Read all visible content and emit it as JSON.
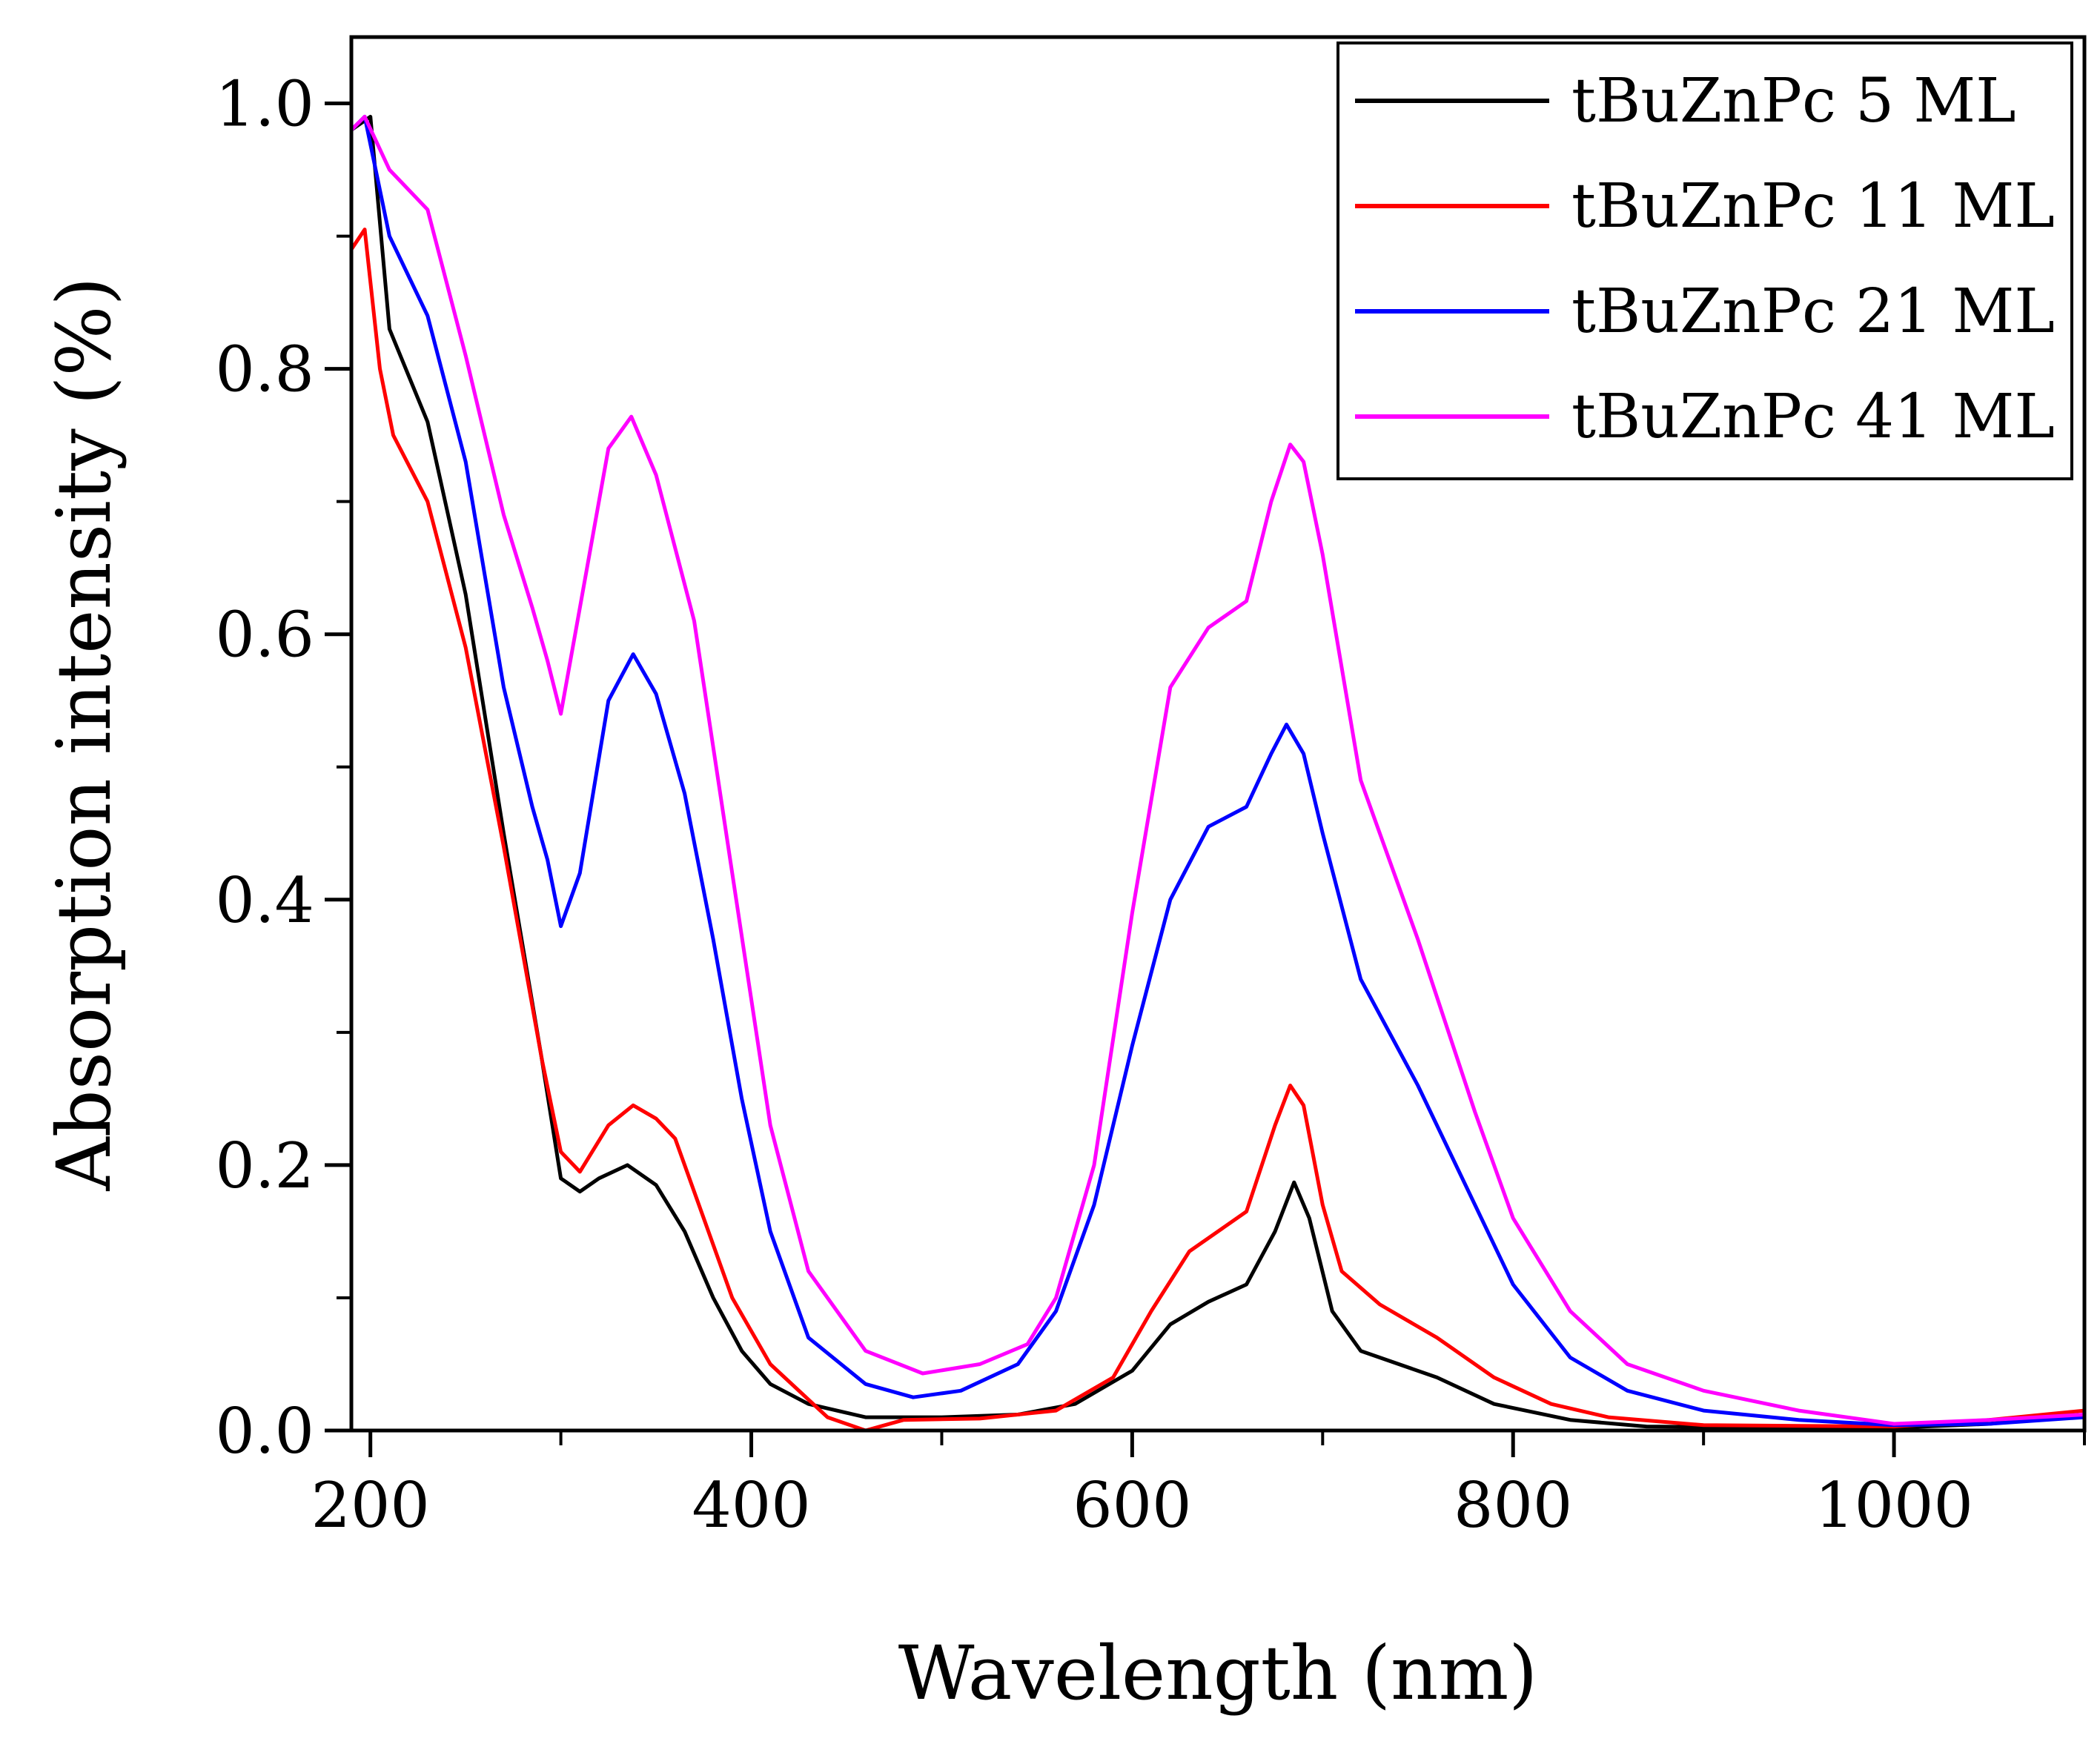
{
  "chart_data": {
    "type": "line",
    "title": "",
    "xlabel": "Wavelength (nm)",
    "ylabel": "Absorption intensity (%)",
    "xlim": [
      190,
      1100
    ],
    "ylim": [
      0.0,
      1.05
    ],
    "x_ticks": [
      "200",
      "400",
      "600",
      "800",
      "1000"
    ],
    "x_tick_values": [
      200,
      400,
      600,
      800,
      1000
    ],
    "y_ticks": [
      "0.0",
      "0.2",
      "0.4",
      "0.6",
      "0.8",
      "1.0"
    ],
    "y_tick_values": [
      0.0,
      0.2,
      0.4,
      0.6,
      0.8,
      1.0
    ],
    "grid": false,
    "legend_position": "top-right",
    "series": [
      {
        "name": "tBuZnPc 5 ML",
        "color": "#000000",
        "points": [
          [
            190,
            0.98
          ],
          [
            200,
            0.99
          ],
          [
            210,
            0.83
          ],
          [
            230,
            0.76
          ],
          [
            250,
            0.63
          ],
          [
            270,
            0.45
          ],
          [
            290,
            0.28
          ],
          [
            300,
            0.19
          ],
          [
            310,
            0.18
          ],
          [
            320,
            0.19
          ],
          [
            335,
            0.2
          ],
          [
            350,
            0.185
          ],
          [
            365,
            0.15
          ],
          [
            380,
            0.1
          ],
          [
            395,
            0.06
          ],
          [
            410,
            0.035
          ],
          [
            430,
            0.02
          ],
          [
            460,
            0.01
          ],
          [
            500,
            0.01
          ],
          [
            540,
            0.012
          ],
          [
            570,
            0.02
          ],
          [
            600,
            0.045
          ],
          [
            620,
            0.08
          ],
          [
            640,
            0.097
          ],
          [
            660,
            0.11
          ],
          [
            675,
            0.15
          ],
          [
            685,
            0.187
          ],
          [
            693,
            0.16
          ],
          [
            705,
            0.09
          ],
          [
            720,
            0.06
          ],
          [
            760,
            0.04
          ],
          [
            790,
            0.02
          ],
          [
            830,
            0.008
          ],
          [
            870,
            0.003
          ],
          [
            950,
            0.002
          ],
          [
            1000,
            0.002
          ],
          [
            1050,
            0.005
          ],
          [
            1100,
            0.012
          ]
        ]
      },
      {
        "name": "tBuZnPc 11 ML",
        "color": "#ff0000",
        "points": [
          [
            190,
            0.89
          ],
          [
            197,
            0.905
          ],
          [
            205,
            0.8
          ],
          [
            212,
            0.75
          ],
          [
            230,
            0.7
          ],
          [
            250,
            0.59
          ],
          [
            270,
            0.44
          ],
          [
            290,
            0.28
          ],
          [
            300,
            0.21
          ],
          [
            310,
            0.195
          ],
          [
            325,
            0.23
          ],
          [
            338,
            0.245
          ],
          [
            350,
            0.235
          ],
          [
            360,
            0.22
          ],
          [
            375,
            0.16
          ],
          [
            390,
            0.1
          ],
          [
            410,
            0.05
          ],
          [
            440,
            0.01
          ],
          [
            460,
            0.0
          ],
          [
            480,
            0.008
          ],
          [
            520,
            0.009
          ],
          [
            560,
            0.015
          ],
          [
            590,
            0.04
          ],
          [
            610,
            0.09
          ],
          [
            630,
            0.135
          ],
          [
            660,
            0.165
          ],
          [
            675,
            0.23
          ],
          [
            683,
            0.26
          ],
          [
            690,
            0.245
          ],
          [
            700,
            0.17
          ],
          [
            710,
            0.12
          ],
          [
            730,
            0.095
          ],
          [
            760,
            0.07
          ],
          [
            790,
            0.04
          ],
          [
            820,
            0.02
          ],
          [
            850,
            0.01
          ],
          [
            900,
            0.004
          ],
          [
            1000,
            0.003
          ],
          [
            1050,
            0.008
          ],
          [
            1100,
            0.015
          ]
        ]
      },
      {
        "name": "tBuZnPc 21 ML",
        "color": "#0000ff",
        "points": [
          [
            190,
            0.98
          ],
          [
            197,
            0.99
          ],
          [
            210,
            0.9
          ],
          [
            230,
            0.84
          ],
          [
            250,
            0.73
          ],
          [
            270,
            0.56
          ],
          [
            285,
            0.47
          ],
          [
            293,
            0.43
          ],
          [
            300,
            0.38
          ],
          [
            310,
            0.42
          ],
          [
            325,
            0.55
          ],
          [
            338,
            0.585
          ],
          [
            350,
            0.555
          ],
          [
            365,
            0.48
          ],
          [
            380,
            0.37
          ],
          [
            395,
            0.25
          ],
          [
            410,
            0.15
          ],
          [
            430,
            0.07
          ],
          [
            460,
            0.035
          ],
          [
            485,
            0.025
          ],
          [
            510,
            0.03
          ],
          [
            540,
            0.05
          ],
          [
            560,
            0.09
          ],
          [
            580,
            0.17
          ],
          [
            600,
            0.29
          ],
          [
            620,
            0.4
          ],
          [
            640,
            0.455
          ],
          [
            660,
            0.47
          ],
          [
            673,
            0.51
          ],
          [
            681,
            0.532
          ],
          [
            690,
            0.51
          ],
          [
            700,
            0.45
          ],
          [
            720,
            0.34
          ],
          [
            750,
            0.26
          ],
          [
            780,
            0.17
          ],
          [
            800,
            0.11
          ],
          [
            830,
            0.055
          ],
          [
            860,
            0.03
          ],
          [
            900,
            0.015
          ],
          [
            950,
            0.008
          ],
          [
            1000,
            0.004
          ],
          [
            1050,
            0.005
          ],
          [
            1100,
            0.01
          ]
        ]
      },
      {
        "name": "tBuZnPc 41 ML",
        "color": "#ff00ff",
        "points": [
          [
            190,
            0.98
          ],
          [
            197,
            0.99
          ],
          [
            210,
            0.95
          ],
          [
            230,
            0.92
          ],
          [
            250,
            0.81
          ],
          [
            270,
            0.69
          ],
          [
            285,
            0.62
          ],
          [
            293,
            0.58
          ],
          [
            300,
            0.54
          ],
          [
            310,
            0.62
          ],
          [
            325,
            0.74
          ],
          [
            337,
            0.764
          ],
          [
            350,
            0.72
          ],
          [
            370,
            0.61
          ],
          [
            390,
            0.42
          ],
          [
            410,
            0.23
          ],
          [
            430,
            0.12
          ],
          [
            460,
            0.06
          ],
          [
            490,
            0.043
          ],
          [
            520,
            0.05
          ],
          [
            545,
            0.065
          ],
          [
            560,
            0.1
          ],
          [
            580,
            0.2
          ],
          [
            600,
            0.39
          ],
          [
            620,
            0.56
          ],
          [
            640,
            0.605
          ],
          [
            660,
            0.625
          ],
          [
            673,
            0.7
          ],
          [
            683,
            0.743
          ],
          [
            690,
            0.73
          ],
          [
            700,
            0.66
          ],
          [
            720,
            0.49
          ],
          [
            750,
            0.37
          ],
          [
            780,
            0.24
          ],
          [
            800,
            0.16
          ],
          [
            830,
            0.09
          ],
          [
            860,
            0.05
          ],
          [
            900,
            0.03
          ],
          [
            950,
            0.015
          ],
          [
            1000,
            0.005
          ],
          [
            1050,
            0.008
          ],
          [
            1100,
            0.012
          ]
        ]
      }
    ]
  }
}
